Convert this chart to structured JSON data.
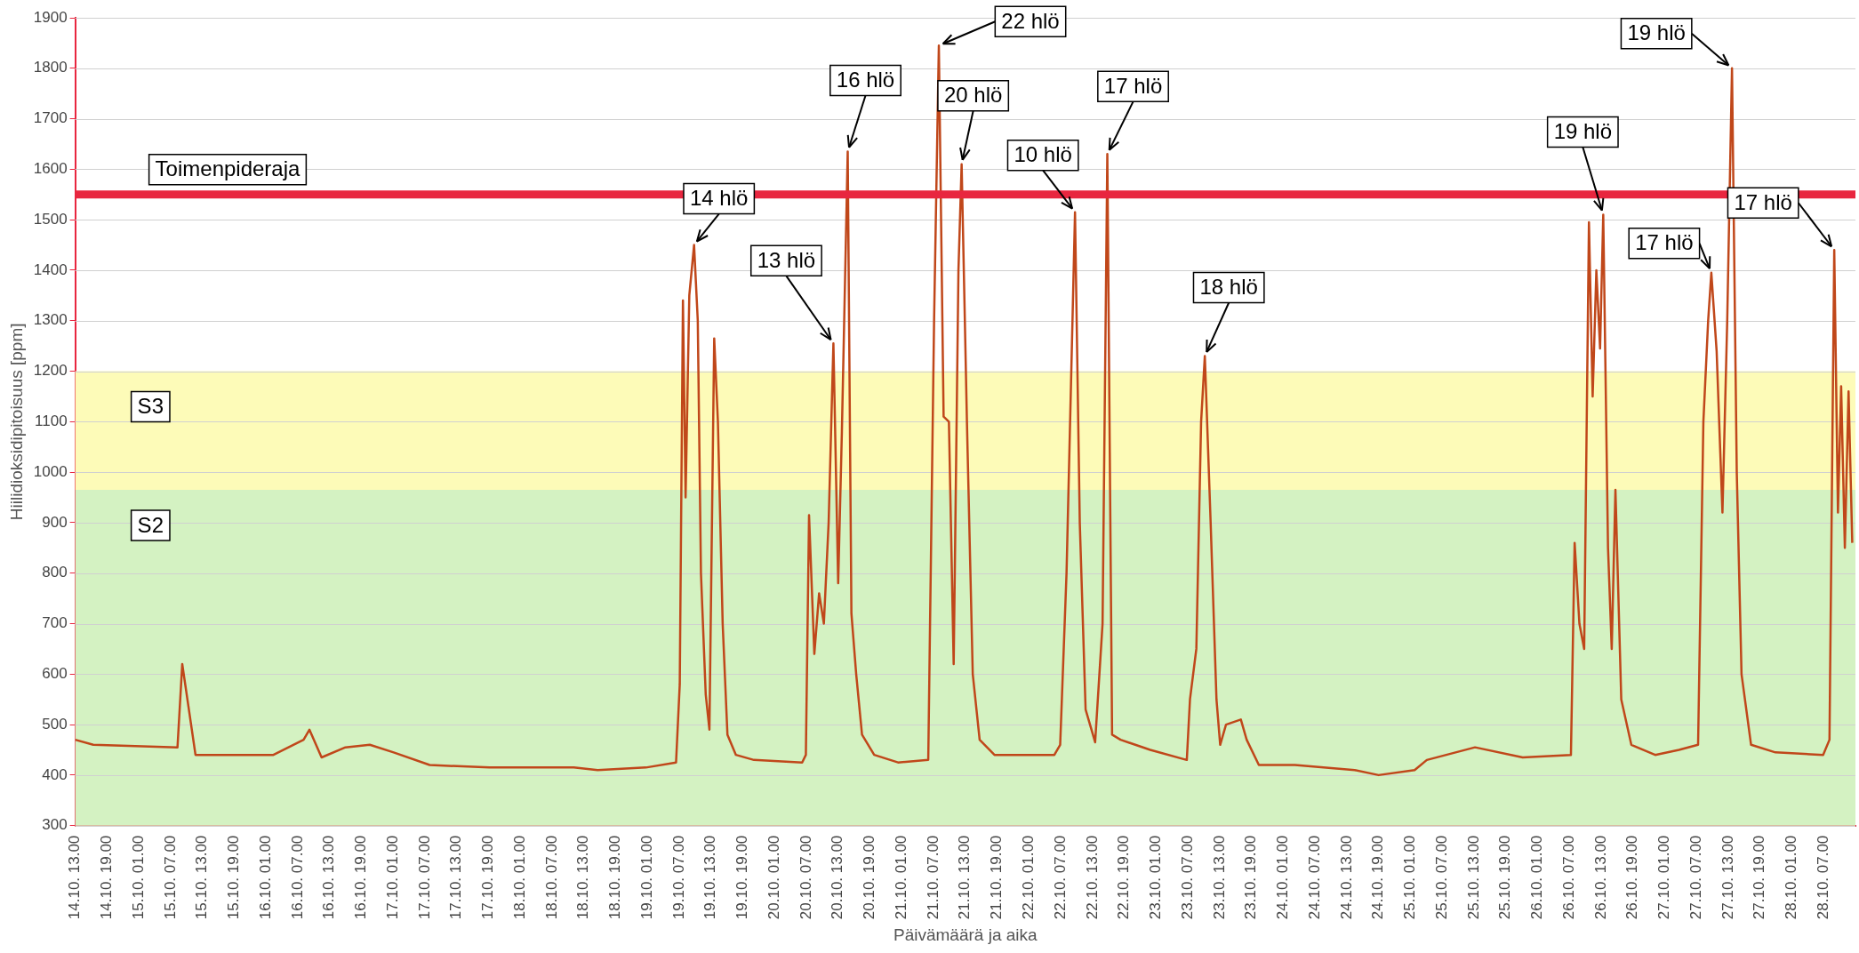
{
  "chart_data": {
    "type": "line",
    "xlabel": "Päivämäärä ja aika",
    "ylabel": "Hiilidioksidipitoisuus [ppm]",
    "x": [
      "--10-14T13:00",
      "--10-14T16:24",
      "--10-15T08:18",
      "--10-15T09:12",
      "--10-15T11:42",
      "--10-16T02:24",
      "--10-16T08:06",
      "--10-16T09:12",
      "--10-16T11:30",
      "--10-16T16:00",
      "--10-16T20:36",
      "--10-17T01:06",
      "--10-17T07:54",
      "--10-17T19:12",
      "--10-18T11:06",
      "--10-18T15:36",
      "--10-19T00:42",
      "--10-19T06:24",
      "--10-19T07:06",
      "--10-19T07:42",
      "--10-19T08:12",
      "--10-19T08:54",
      "--10-19T09:48",
      "--10-19T10:30",
      "--10-19T11:06",
      "--10-19T12:00",
      "--10-19T12:42",
      "--10-19T13:36",
      "--10-19T14:18",
      "--10-19T15:12",
      "--10-19T16:06",
      "--10-19T17:42",
      "--10-19T21:06",
      "--10-20T06:12",
      "--10-20T06:54",
      "--10-20T07:30",
      "--10-20T08:30",
      "--10-20T09:24",
      "--10-20T10:18",
      "--10-20T11:12",
      "--10-20T12:06",
      "--10-20T13:00",
      "--10-20T13:42",
      "--10-20T14:48",
      "--10-20T15:30",
      "--10-20T16:24",
      "--10-20T17:30",
      "--10-20T19:48",
      "--10-21T00:18",
      "--10-21T06:00",
      "--10-21T07:06",
      "--10-21T08:00",
      "--10-21T08:54",
      "--10-21T09:54",
      "--10-21T10:48",
      "--10-21T11:42",
      "--10-21T12:18",
      "--10-21T13:18",
      "--10-21T14:24",
      "--10-21T15:42",
      "--10-21T18:30",
      "--10-22T05:48",
      "--10-22T06:54",
      "--10-22T08:06",
      "--10-22T09:00",
      "--10-22T09:42",
      "--10-22T10:36",
      "--10-22T11:42",
      "--10-22T13:30",
      "--10-22T14:54",
      "--10-22T15:48",
      "--10-22T16:42",
      "--10-22T18:18",
      "--10-22T23:54",
      "--10-23T06:48",
      "--10-23T07:24",
      "--10-23T08:36",
      "--10-23T09:30",
      "--10-23T10:12",
      "--10-23T11:18",
      "--10-23T12:24",
      "--10-23T13:06",
      "--10-23T14:12",
      "--10-23T17:00",
      "--10-23T18:06",
      "--10-23T20:24",
      "--10-24T03:12",
      "--10-24T14:30",
      "--10-24T19:00",
      "--10-25T01:48",
      "--10-25T04:06",
      "--10-25T13:12",
      "--10-25T22:12",
      "--10-26T07:18",
      "--10-26T08:00",
      "--10-26T08:54",
      "--10-26T09:48",
      "--10-26T10:42",
      "--10-26T11:24",
      "--10-26T12:06",
      "--10-26T12:48",
      "--10-26T13:24",
      "--10-26T14:18",
      "--10-26T15:00",
      "--10-26T15:42",
      "--10-26T16:48",
      "--10-26T18:42",
      "--10-26T23:12",
      "--10-27T03:42",
      "--10-27T07:18",
      "--10-27T08:18",
      "--10-27T09:12",
      "--10-27T09:48",
      "--10-27T10:48",
      "--10-27T11:54",
      "--10-27T12:48",
      "--10-27T13:42",
      "--10-27T14:36",
      "--10-27T15:30",
      "--10-27T17:18",
      "--10-27T21:54",
      "--10-28T06:54",
      "--10-28T08:06",
      "--10-28T09:00",
      "--10-28T09:42",
      "--10-28T10:18",
      "--10-28T11:00",
      "--10-28T11:42",
      "--10-28T12:24"
    ],
    "series": [
      {
        "color": "#c0471a",
        "values": [
          470,
          460,
          455,
          620,
          440,
          440,
          470,
          490,
          435,
          455,
          460,
          445,
          420,
          415,
          415,
          410,
          415,
          425,
          580,
          1340,
          950,
          1350,
          1450,
          1300,
          800,
          560,
          490,
          1265,
          1100,
          700,
          480,
          440,
          430,
          425,
          440,
          915,
          640,
          760,
          700,
          900,
          1255,
          780,
          1080,
          1635,
          720,
          600,
          480,
          440,
          425,
          430,
          1300,
          1845,
          1110,
          1100,
          620,
          1400,
          1610,
          1100,
          600,
          470,
          440,
          440,
          460,
          800,
          1200,
          1515,
          900,
          530,
          465,
          700,
          1630,
          480,
          470,
          450,
          430,
          550,
          650,
          1100,
          1230,
          900,
          550,
          460,
          500,
          510,
          470,
          420,
          420,
          410,
          400,
          410,
          430,
          455,
          435,
          440,
          860,
          700,
          650,
          1495,
          1150,
          1400,
          1245,
          1510,
          850,
          650,
          965,
          550,
          460,
          440,
          450,
          460,
          1100,
          1300,
          1395,
          1240,
          920,
          1300,
          1800,
          1000,
          600,
          460,
          445,
          440,
          470,
          1440,
          920,
          1170,
          850,
          1160,
          860
        ]
      }
    ],
    "xlim": [
      "--10-14T13:00",
      "--10-28T13:00"
    ],
    "xticks": [
      {
        "value": "--10-14T13:00",
        "label": "14.10. 13.00"
      },
      {
        "value": "--10-14T19:00",
        "label": "14.10. 19.00"
      },
      {
        "value": "--10-15T01:00",
        "label": "15.10. 01.00"
      },
      {
        "value": "--10-15T07:00",
        "label": "15.10. 07.00"
      },
      {
        "value": "--10-15T13:00",
        "label": "15.10. 13.00"
      },
      {
        "value": "--10-15T19:00",
        "label": "15.10. 19.00"
      },
      {
        "value": "--10-16T01:00",
        "label": "16.10. 01.00"
      },
      {
        "value": "--10-16T07:00",
        "label": "16.10. 07.00"
      },
      {
        "value": "--10-16T13:00",
        "label": "16.10. 13.00"
      },
      {
        "value": "--10-16T19:00",
        "label": "16.10. 19.00"
      },
      {
        "value": "--10-17T01:00",
        "label": "17.10. 01.00"
      },
      {
        "value": "--10-17T07:00",
        "label": "17.10. 07.00"
      },
      {
        "value": "--10-17T13:00",
        "label": "17.10. 13.00"
      },
      {
        "value": "--10-17T19:00",
        "label": "17.10. 19.00"
      },
      {
        "value": "--10-18T01:00",
        "label": "18.10. 01.00"
      },
      {
        "value": "--10-18T07:00",
        "label": "18.10. 07.00"
      },
      {
        "value": "--10-18T13:00",
        "label": "18.10. 13.00"
      },
      {
        "value": "--10-18T19:00",
        "label": "18.10. 19.00"
      },
      {
        "value": "--10-19T01:00",
        "label": "19.10. 01.00"
      },
      {
        "value": "--10-19T07:00",
        "label": "19.10. 07.00"
      },
      {
        "value": "--10-19T13:00",
        "label": "19.10. 13.00"
      },
      {
        "value": "--10-19T19:00",
        "label": "19.10. 19.00"
      },
      {
        "value": "--10-20T01:00",
        "label": "20.10. 01.00"
      },
      {
        "value": "--10-20T07:00",
        "label": "20.10. 07.00"
      },
      {
        "value": "--10-20T13:00",
        "label": "20.10. 13.00"
      },
      {
        "value": "--10-20T19:00",
        "label": "20.10. 19.00"
      },
      {
        "value": "--10-21T01:00",
        "label": "21.10. 01.00"
      },
      {
        "value": "--10-21T07:00",
        "label": "21.10. 07.00"
      },
      {
        "value": "--10-21T13:00",
        "label": "21.10. 13.00"
      },
      {
        "value": "--10-21T19:00",
        "label": "21.10. 19.00"
      },
      {
        "value": "--10-22T01:00",
        "label": "22.10. 01.00"
      },
      {
        "value": "--10-22T07:00",
        "label": "22.10. 07.00"
      },
      {
        "value": "--10-22T13:00",
        "label": "22.10. 13.00"
      },
      {
        "value": "--10-22T19:00",
        "label": "22.10. 19.00"
      },
      {
        "value": "--10-23T01:00",
        "label": "23.10. 01.00"
      },
      {
        "value": "--10-23T07:00",
        "label": "23.10. 07.00"
      },
      {
        "value": "--10-23T13:00",
        "label": "23.10. 13.00"
      },
      {
        "value": "--10-23T19:00",
        "label": "23.10. 19.00"
      },
      {
        "value": "--10-24T01:00",
        "label": "24.10. 01.00"
      },
      {
        "value": "--10-24T07:00",
        "label": "24.10. 07.00"
      },
      {
        "value": "--10-24T13:00",
        "label": "24.10. 13.00"
      },
      {
        "value": "--10-24T19:00",
        "label": "24.10. 19.00"
      },
      {
        "value": "--10-25T01:00",
        "label": "25.10. 01.00"
      },
      {
        "value": "--10-25T07:00",
        "label": "25.10. 07.00"
      },
      {
        "value": "--10-25T13:00",
        "label": "25.10. 13.00"
      },
      {
        "value": "--10-25T19:00",
        "label": "25.10. 19.00"
      },
      {
        "value": "--10-26T01:00",
        "label": "26.10. 01.00"
      },
      {
        "value": "--10-26T07:00",
        "label": "26.10. 07.00"
      },
      {
        "value": "--10-26T13:00",
        "label": "26.10. 13.00"
      },
      {
        "value": "--10-26T19:00",
        "label": "26.10. 19.00"
      },
      {
        "value": "--10-27T01:00",
        "label": "27.10. 01.00"
      },
      {
        "value": "--10-27T07:00",
        "label": "27.10. 07.00"
      },
      {
        "value": "--10-27T13:00",
        "label": "27.10. 13.00"
      },
      {
        "value": "--10-27T19:00",
        "label": "27.10. 19.00"
      },
      {
        "value": "--10-28T01:00",
        "label": "28.10. 01.00"
      },
      {
        "value": "--10-28T07:00",
        "label": "28.10. 07.00"
      }
    ],
    "ylim": [
      300,
      1900
    ],
    "yticks": [
      300,
      400,
      500,
      600,
      700,
      800,
      900,
      1000,
      1100,
      1200,
      1300,
      1400,
      1500,
      1600,
      1700,
      1800,
      1900
    ],
    "grid": "y",
    "marker": "none",
    "bands": [
      {
        "axis": "y",
        "from": 300,
        "to": 965,
        "label": "S2",
        "color": "#d4f2c2"
      },
      {
        "axis": "y",
        "from": 965,
        "to": 1200,
        "label": "S3",
        "color": "#fdfbb8"
      }
    ],
    "ref_lines": [
      {
        "axis": "y",
        "value": 1550,
        "label": "Toimenpideraja",
        "color": "#e8263f"
      }
    ],
    "annotations": [
      {
        "text": "14 hlö",
        "x": "--10-19T09:48",
        "y": 1450
      },
      {
        "text": "13 hlö",
        "x": "--10-20T12:06",
        "y": 1255
      },
      {
        "text": "16 hlö",
        "x": "--10-20T14:48",
        "y": 1635
      },
      {
        "text": "22 hlö",
        "x": "--10-21T08:00",
        "y": 1845
      },
      {
        "text": "20 hlö",
        "x": "--10-21T12:18",
        "y": 1610
      },
      {
        "text": "10 hlö",
        "x": "--10-22T09:42",
        "y": 1515
      },
      {
        "text": "17 hlö",
        "x": "--10-22T15:48",
        "y": 1630
      },
      {
        "text": "18 hlö",
        "x": "--10-23T10:12",
        "y": 1230
      },
      {
        "text": "19 hlö",
        "x": "--10-26T13:24",
        "y": 1510
      },
      {
        "text": "17 hlö",
        "x": "--10-27T09:48",
        "y": 1395
      },
      {
        "text": "19 hlö",
        "x": "--10-27T13:42",
        "y": 1800
      },
      {
        "text": "17 hlö",
        "x": "--10-28T09:00",
        "y": 1440
      }
    ]
  }
}
